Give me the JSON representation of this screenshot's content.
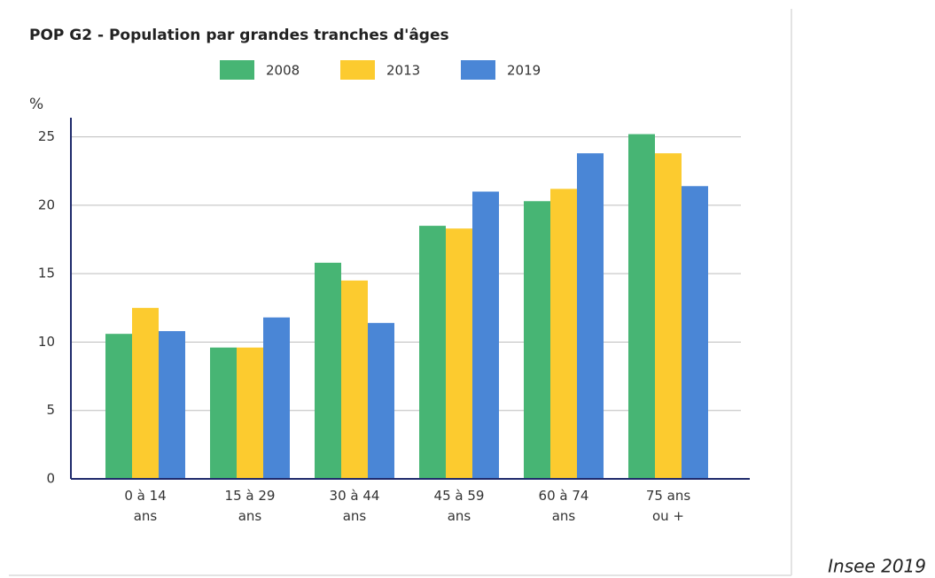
{
  "chart_data": {
    "type": "bar",
    "title": "POP G2 - Population par grandes tranches d'âges",
    "y_label": "%",
    "categories": [
      "0 à 14 ans",
      "15 à 29 ans",
      "30 à 44 ans",
      "45 à 59 ans",
      "60 à 74 ans",
      "75 ans ou +"
    ],
    "series": [
      {
        "name": "2008",
        "color": "#47b574",
        "values": [
          10.6,
          9.6,
          15.8,
          18.5,
          20.3,
          25.2
        ]
      },
      {
        "name": "2013",
        "color": "#fccb2f",
        "values": [
          12.5,
          9.6,
          14.5,
          18.3,
          21.2,
          23.8
        ]
      },
      {
        "name": "2019",
        "color": "#4a86d6",
        "values": [
          10.8,
          11.8,
          11.4,
          21.0,
          23.8,
          21.4
        ]
      }
    ],
    "ylim": [
      0,
      26.4
    ],
    "yticks": [
      0,
      5,
      10,
      15,
      20,
      25
    ],
    "grid": true,
    "source": "Insee 2019"
  }
}
